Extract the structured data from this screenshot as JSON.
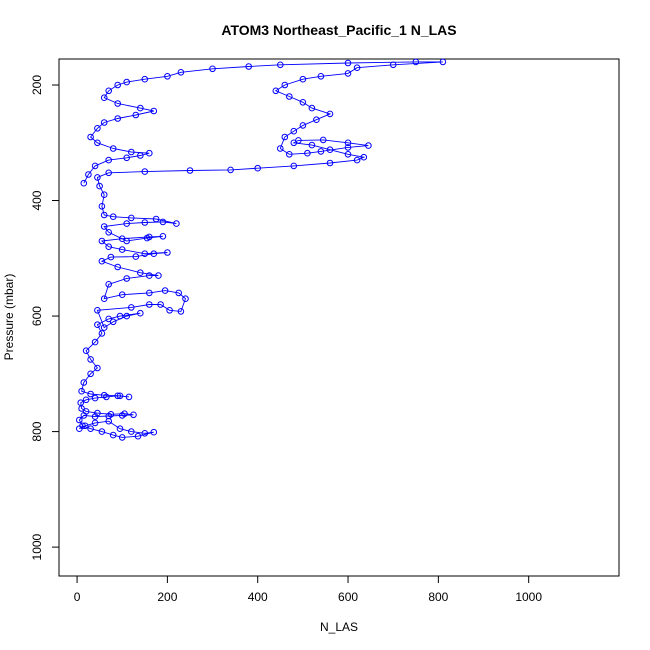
{
  "chart_data": {
    "type": "scatter",
    "title": "ATOM3 Northeast_Pacific_1 N_LAS",
    "xlabel": "N_LAS",
    "ylabel": "Pressure (mbar)",
    "xlim": [
      -40,
      1200
    ],
    "ylim": [
      1050,
      155
    ],
    "y_reversed": true,
    "x_ticks": [
      0,
      200,
      400,
      600,
      800,
      1000
    ],
    "y_ticks": [
      200,
      400,
      600,
      800,
      1000
    ],
    "x_tick_labels": [
      "0",
      "200",
      "400",
      "600",
      "800",
      "1000"
    ],
    "y_tick_labels": [
      "200",
      "400",
      "600",
      "800",
      "1000"
    ],
    "series_style": {
      "color": "#0000ff",
      "marker": "open-circle",
      "connected": true
    },
    "series": [
      {
        "points": [
          [
            5,
            795
          ],
          [
            18,
            790
          ],
          [
            40,
            785
          ],
          [
            70,
            782
          ],
          [
            95,
            795
          ],
          [
            120,
            800
          ],
          [
            150,
            803
          ],
          [
            170,
            801
          ],
          [
            135,
            808
          ],
          [
            100,
            810
          ],
          [
            80,
            806
          ],
          [
            55,
            800
          ],
          [
            30,
            795
          ],
          [
            12,
            790
          ],
          [
            5,
            780
          ],
          [
            15,
            772
          ],
          [
            40,
            774
          ],
          [
            70,
            773
          ],
          [
            100,
            772
          ],
          [
            125,
            771
          ],
          [
            105,
            769
          ],
          [
            75,
            770
          ],
          [
            45,
            768
          ],
          [
            20,
            765
          ],
          [
            10,
            760
          ],
          [
            8,
            750
          ],
          [
            20,
            745
          ],
          [
            40,
            742
          ],
          [
            65,
            740
          ],
          [
            90,
            738
          ],
          [
            115,
            740
          ],
          [
            95,
            738
          ],
          [
            60,
            737
          ],
          [
            30,
            735
          ],
          [
            10,
            730
          ],
          [
            15,
            715
          ],
          [
            30,
            700
          ],
          [
            45,
            690
          ],
          [
            30,
            675
          ],
          [
            20,
            660
          ],
          [
            40,
            645
          ],
          [
            55,
            630
          ],
          [
            45,
            615
          ],
          [
            70,
            605
          ],
          [
            95,
            600
          ],
          [
            140,
            595
          ],
          [
            110,
            600
          ],
          [
            80,
            610
          ],
          [
            60,
            620
          ],
          [
            45,
            590
          ],
          [
            120,
            585
          ],
          [
            160,
            580
          ],
          [
            185,
            580
          ],
          [
            205,
            590
          ],
          [
            230,
            592
          ],
          [
            240,
            570
          ],
          [
            225,
            560
          ],
          [
            195,
            556
          ],
          [
            160,
            560
          ],
          [
            100,
            563
          ],
          [
            60,
            570
          ],
          [
            70,
            545
          ],
          [
            110,
            535
          ],
          [
            160,
            530
          ],
          [
            180,
            530
          ],
          [
            140,
            525
          ],
          [
            90,
            515
          ],
          [
            55,
            505
          ],
          [
            75,
            498
          ],
          [
            130,
            497
          ],
          [
            170,
            492
          ],
          [
            200,
            490
          ],
          [
            150,
            492
          ],
          [
            100,
            485
          ],
          [
            70,
            480
          ],
          [
            55,
            470
          ],
          [
            100,
            466
          ],
          [
            160,
            463
          ],
          [
            190,
            462
          ],
          [
            155,
            465
          ],
          [
            110,
            470
          ],
          [
            70,
            455
          ],
          [
            60,
            445
          ],
          [
            110,
            440
          ],
          [
            150,
            438
          ],
          [
            190,
            437
          ],
          [
            220,
            440
          ],
          [
            175,
            432
          ],
          [
            120,
            430
          ],
          [
            80,
            428
          ],
          [
            60,
            425
          ],
          [
            55,
            410
          ],
          [
            60,
            390
          ],
          [
            50,
            375
          ],
          [
            45,
            360
          ],
          [
            70,
            352
          ],
          [
            150,
            350
          ],
          [
            250,
            348
          ],
          [
            340,
            347
          ],
          [
            400,
            344
          ],
          [
            480,
            340
          ],
          [
            560,
            335
          ],
          [
            620,
            330
          ],
          [
            635,
            325
          ],
          [
            600,
            320
          ],
          [
            560,
            312
          ],
          [
            520,
            304
          ],
          [
            480,
            300
          ],
          [
            490,
            296
          ],
          [
            545,
            295
          ],
          [
            600,
            300
          ],
          [
            645,
            305
          ],
          [
            600,
            308
          ],
          [
            540,
            315
          ],
          [
            510,
            318
          ],
          [
            470,
            320
          ],
          [
            450,
            310
          ],
          [
            460,
            290
          ],
          [
            480,
            280
          ],
          [
            500,
            270
          ],
          [
            530,
            260
          ],
          [
            560,
            250
          ],
          [
            520,
            240
          ],
          [
            500,
            230
          ],
          [
            470,
            220
          ],
          [
            440,
            210
          ],
          [
            460,
            200
          ],
          [
            500,
            190
          ],
          [
            540,
            185
          ],
          [
            600,
            180
          ],
          [
            620,
            170
          ],
          [
            700,
            165
          ],
          [
            810,
            160
          ],
          [
            750,
            160
          ],
          [
            600,
            162
          ],
          [
            450,
            165
          ],
          [
            380,
            168
          ],
          [
            300,
            172
          ],
          [
            230,
            178
          ],
          [
            200,
            185
          ],
          [
            150,
            190
          ],
          [
            110,
            195
          ],
          [
            90,
            200
          ],
          [
            70,
            210
          ],
          [
            60,
            222
          ],
          [
            90,
            232
          ],
          [
            140,
            240
          ],
          [
            170,
            245
          ],
          [
            130,
            252
          ],
          [
            90,
            258
          ],
          [
            60,
            265
          ],
          [
            45,
            275
          ],
          [
            30,
            290
          ],
          [
            45,
            300
          ],
          [
            80,
            310
          ],
          [
            120,
            316
          ],
          [
            160,
            318
          ],
          [
            140,
            322
          ],
          [
            110,
            326
          ],
          [
            70,
            330
          ],
          [
            40,
            340
          ],
          [
            25,
            355
          ],
          [
            15,
            370
          ]
        ]
      }
    ]
  }
}
